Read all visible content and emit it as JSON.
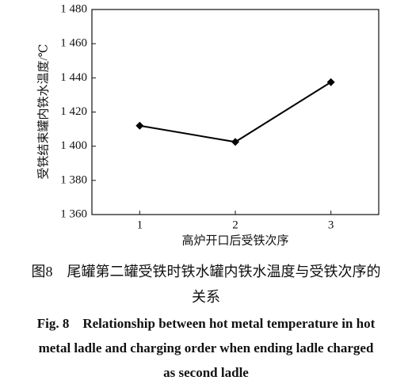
{
  "chart_data": {
    "type": "line",
    "x_label": "高炉开口后受铁次序",
    "y_label": "受铁结束罐内铁水温度/℃",
    "x": [
      1,
      2,
      3
    ],
    "series": [
      {
        "color": "#000000",
        "values": [
          1412,
          1402.5,
          1437.5
        ]
      }
    ],
    "xlim": [
      0.5,
      3.5
    ],
    "xticks": [
      1,
      2,
      3
    ],
    "ylim": [
      1360,
      1480
    ],
    "yticks": [
      {
        "value": 1360,
        "label": "1 360"
      },
      {
        "value": 1380,
        "label": "1 380"
      },
      {
        "value": 1400,
        "label": "1 400"
      },
      {
        "value": 1420,
        "label": "1 420"
      },
      {
        "value": 1440,
        "label": "1 440"
      },
      {
        "value": 1460,
        "label": "1 460"
      },
      {
        "value": 1480,
        "label": "1 480"
      }
    ],
    "grid": false
  },
  "caption": {
    "cn_lines": [
      "图8　尾罐第二罐受铁时铁水罐内铁水温度与受铁次序的",
      "关系"
    ],
    "en_lines": [
      "Fig. 8　Relationship between hot metal temperature in hot",
      "metal ladle and charging order when ending ladle charged",
      "as second ladle"
    ]
  }
}
